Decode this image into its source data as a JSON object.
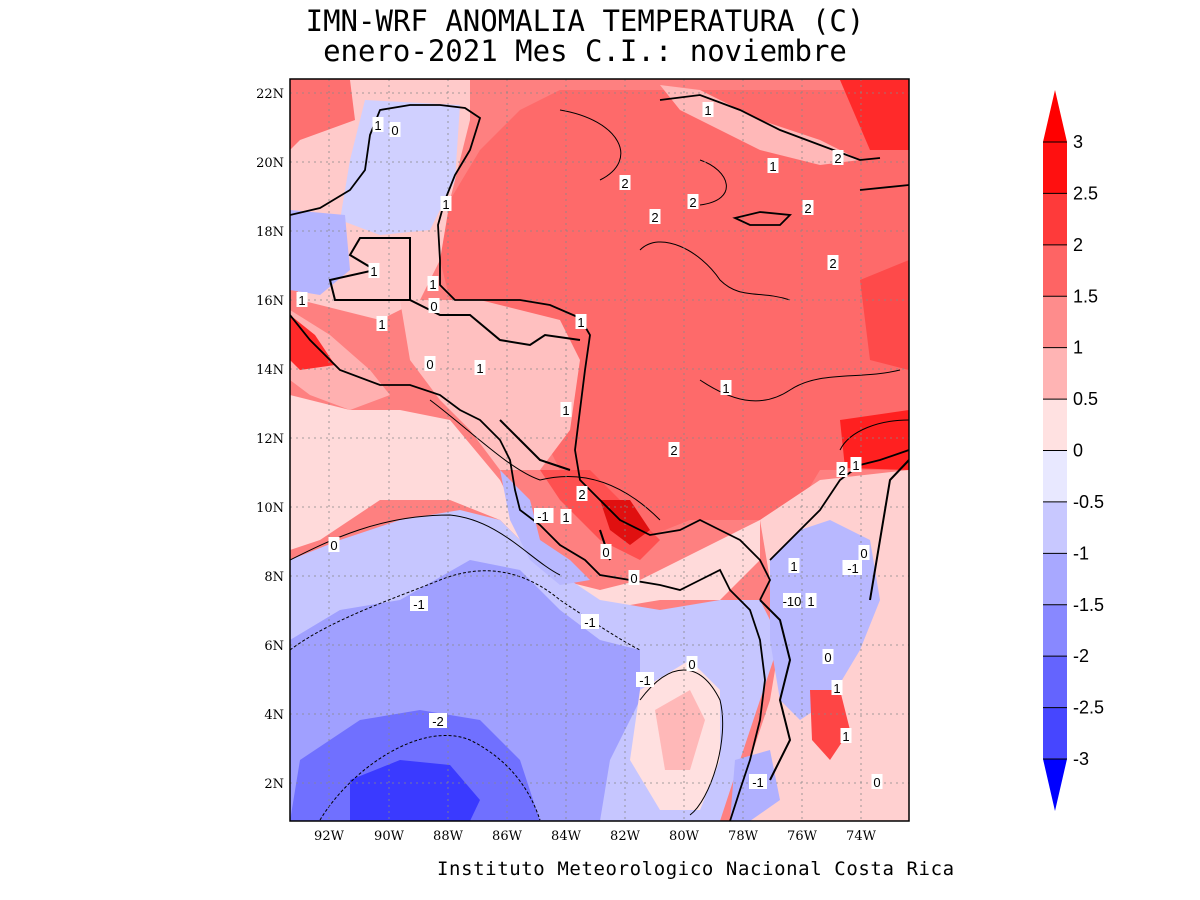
{
  "title": {
    "line1": "IMN-WRF  ANOMALIA TEMPERATURA (C)",
    "line2": "enero-2021 Mes C.I.: noviembre"
  },
  "footer": "Instituto Meteorologico Nacional Costa Rica",
  "map": {
    "lat_labels": [
      "22N",
      "20N",
      "18N",
      "16N",
      "14N",
      "12N",
      "10N",
      "8N",
      "6N",
      "4N",
      "2N"
    ],
    "lon_labels": [
      "92W",
      "90W",
      "88W",
      "86W",
      "84W",
      "82W",
      "80W",
      "78W",
      "76W",
      "74W"
    ],
    "contour_labels": [
      "1",
      "0",
      "1",
      "2",
      "2",
      "2",
      "2",
      "2",
      "1",
      "1",
      "1",
      "0",
      "1",
      "1",
      "1",
      "1",
      "1",
      "0",
      "1",
      "1",
      "2",
      "2",
      "2",
      "1",
      "2",
      "0",
      "1",
      "1",
      "0",
      "0",
      "1",
      "1",
      "0",
      "-1",
      "-1",
      "-1",
      "-1",
      "-2",
      "-1",
      "0",
      "1",
      "1",
      "0",
      "-1",
      "-10",
      "0",
      "1"
    ]
  },
  "colorbar": {
    "labels": [
      "3",
      "2.5",
      "2",
      "1.5",
      "1",
      "0.5",
      "0",
      "-0.5",
      "-1",
      "-1.5",
      "-2",
      "-2.5",
      "-3"
    ],
    "colors": [
      "#ff1010",
      "#fe3a3a",
      "#fe6464",
      "#fe8c8c",
      "#ffb4b4",
      "#ffe1e1",
      "#e8e8ff",
      "#c8c8ff",
      "#a8a8ff",
      "#8888ff",
      "#6464fe",
      "#4646ff",
      "#2222ff"
    ],
    "top_arrow_color": "#ff0000",
    "bottom_arrow_color": "#0000ff"
  }
}
